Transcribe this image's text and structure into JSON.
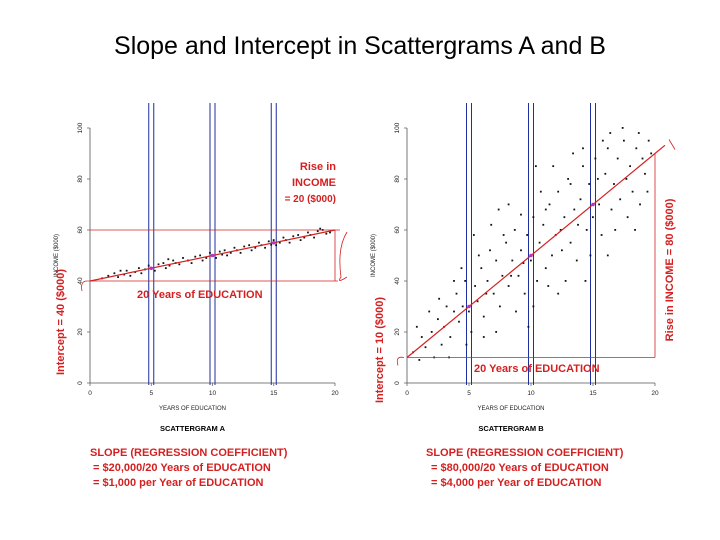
{
  "title": "Slope and Intercept in Scattergrams A and B",
  "colors": {
    "regression": "#d42020",
    "guide": "#1f2f9e",
    "points": "#111111",
    "text_red": "#d42020"
  },
  "chart_data": [
    {
      "type": "scatter",
      "name": "SCATTERGRAM A",
      "xlabel": "YEARS OF EDUCATION",
      "ylabel": "INCOME ($000)",
      "xlim": [
        0,
        20
      ],
      "ylim": [
        0,
        100
      ],
      "xticks": [
        0,
        5,
        10,
        15,
        20
      ],
      "yticks": [
        0,
        20,
        40,
        60,
        80,
        100
      ],
      "regression": {
        "intercept": 40,
        "slope": 1
      },
      "vertical_guides": [
        5,
        10,
        15
      ],
      "annotations": {
        "rise_lines": [
          "Rise in",
          "INCOME",
          "= 20 ($000)"
        ],
        "run": "20 Years of EDUCATION",
        "intercept": "Intercept = 40 ($000)",
        "slope_lines": [
          "SLOPE (REGRESSION COEFFICIENT)",
          "= $20,000/20 Years of EDUCATION",
          "= $1,000 per Year of EDUCATION"
        ]
      },
      "points": [
        [
          1,
          41
        ],
        [
          1.5,
          42
        ],
        [
          2,
          43
        ],
        [
          2.3,
          41.5
        ],
        [
          2.8,
          42.5
        ],
        [
          3,
          44
        ],
        [
          3.3,
          42
        ],
        [
          3.7,
          43.5
        ],
        [
          4,
          45
        ],
        [
          4.2,
          43
        ],
        [
          4.5,
          44.5
        ],
        [
          4.8,
          46
        ],
        [
          5,
          45
        ],
        [
          5.3,
          44
        ],
        [
          5.6,
          46.5
        ],
        [
          6,
          47
        ],
        [
          6.2,
          45
        ],
        [
          6.5,
          46
        ],
        [
          6.8,
          48
        ],
        [
          7,
          47
        ],
        [
          7.3,
          46.5
        ],
        [
          7.6,
          49
        ],
        [
          8,
          48
        ],
        [
          8.3,
          47
        ],
        [
          8.6,
          49.5
        ],
        [
          9,
          50
        ],
        [
          9.2,
          48
        ],
        [
          9.5,
          49
        ],
        [
          9.8,
          51
        ],
        [
          10,
          50
        ],
        [
          10.3,
          49
        ],
        [
          10.6,
          51.5
        ],
        [
          11,
          52
        ],
        [
          11.2,
          50
        ],
        [
          11.5,
          51
        ],
        [
          11.8,
          53
        ],
        [
          12,
          52
        ],
        [
          12.3,
          51
        ],
        [
          12.6,
          53.5
        ],
        [
          13,
          54
        ],
        [
          13.2,
          52
        ],
        [
          13.5,
          53
        ],
        [
          13.8,
          55
        ],
        [
          14,
          54
        ],
        [
          14.3,
          53
        ],
        [
          14.6,
          55.5
        ],
        [
          15,
          56
        ],
        [
          15.2,
          54
        ],
        [
          15.5,
          55
        ],
        [
          15.8,
          57
        ],
        [
          16,
          56
        ],
        [
          16.3,
          55
        ],
        [
          16.6,
          57.5
        ],
        [
          17,
          58
        ],
        [
          17.2,
          56
        ],
        [
          17.5,
          57
        ],
        [
          17.8,
          59
        ],
        [
          18,
          58
        ],
        [
          18.3,
          57
        ],
        [
          18.6,
          59.5
        ],
        [
          19,
          60
        ],
        [
          19.3,
          58.5
        ],
        [
          19.6,
          59
        ],
        [
          2.5,
          44
        ],
        [
          6.4,
          48.5
        ],
        [
          10.8,
          50.3
        ],
        [
          14.8,
          54.2
        ],
        [
          18.8,
          60.5
        ]
      ]
    },
    {
      "type": "scatter",
      "name": "SCATTERGRAM B",
      "xlabel": "YEARS OF EDUCATION",
      "ylabel": "INCOME ($000)",
      "xlim": [
        0,
        20
      ],
      "ylim": [
        0,
        100
      ],
      "xticks": [
        0,
        5,
        10,
        15,
        20
      ],
      "yticks": [
        0,
        20,
        40,
        60,
        80,
        100
      ],
      "regression": {
        "intercept": 10,
        "slope": 4
      },
      "vertical_guides": [
        5,
        10,
        15
      ],
      "annotations": {
        "rise": "Rise in INCOME = 80 ($000)",
        "run": "20 Years of EDUCATION",
        "intercept": "Intercept = 10 ($000)",
        "slope_lines": [
          "SLOPE (REGRESSION COEFFICIENT)",
          "= $80,000/20 Years of EDUCATION",
          "= $4,000 per Year of EDUCATION"
        ]
      },
      "points": [
        [
          0.5,
          12
        ],
        [
          1,
          9
        ],
        [
          1.2,
          18
        ],
        [
          1.5,
          14
        ],
        [
          2,
          20
        ],
        [
          2.2,
          10
        ],
        [
          2.5,
          25
        ],
        [
          2.8,
          15
        ],
        [
          3,
          22
        ],
        [
          3.2,
          30
        ],
        [
          3.5,
          18
        ],
        [
          3.8,
          28
        ],
        [
          4,
          35
        ],
        [
          4.2,
          24
        ],
        [
          4.5,
          30
        ],
        [
          4.7,
          40
        ],
        [
          5,
          28
        ],
        [
          5.2,
          20
        ],
        [
          5.5,
          38
        ],
        [
          5.7,
          32
        ],
        [
          6,
          45
        ],
        [
          6.2,
          26
        ],
        [
          6.5,
          40
        ],
        [
          6.7,
          52
        ],
        [
          7,
          35
        ],
        [
          7.2,
          48
        ],
        [
          7.5,
          30
        ],
        [
          7.7,
          42
        ],
        [
          8,
          55
        ],
        [
          8.2,
          38
        ],
        [
          8.5,
          48
        ],
        [
          8.7,
          60
        ],
        [
          9,
          42
        ],
        [
          9.2,
          52
        ],
        [
          9.5,
          35
        ],
        [
          9.7,
          58
        ],
        [
          10,
          48
        ],
        [
          10.2,
          65
        ],
        [
          10.5,
          40
        ],
        [
          10.7,
          55
        ],
        [
          11,
          62
        ],
        [
          11.2,
          45
        ],
        [
          11.5,
          70
        ],
        [
          11.7,
          50
        ],
        [
          12,
          58
        ],
        [
          12.2,
          75
        ],
        [
          12.5,
          52
        ],
        [
          12.7,
          65
        ],
        [
          13,
          80
        ],
        [
          13.2,
          55
        ],
        [
          13.5,
          68
        ],
        [
          13.7,
          48
        ],
        [
          14,
          72
        ],
        [
          14.2,
          85
        ],
        [
          14.5,
          60
        ],
        [
          14.7,
          78
        ],
        [
          15,
          65
        ],
        [
          15.2,
          88
        ],
        [
          15.5,
          70
        ],
        [
          15.7,
          58
        ],
        [
          16,
          82
        ],
        [
          16.2,
          92
        ],
        [
          16.5,
          68
        ],
        [
          16.7,
          78
        ],
        [
          17,
          88
        ],
        [
          17.2,
          72
        ],
        [
          17.5,
          95
        ],
        [
          17.7,
          80
        ],
        [
          18,
          85
        ],
        [
          18.2,
          75
        ],
        [
          18.5,
          92
        ],
        [
          18.7,
          98
        ],
        [
          19,
          88
        ],
        [
          19.2,
          82
        ],
        [
          19.5,
          95
        ],
        [
          19.7,
          90
        ],
        [
          6.8,
          62
        ],
        [
          8.8,
          28
        ],
        [
          10.8,
          75
        ],
        [
          12.8,
          40
        ],
        [
          14.8,
          50
        ],
        [
          16.8,
          60
        ],
        [
          11.8,
          85
        ],
        [
          9.8,
          22
        ],
        [
          7.8,
          58
        ],
        [
          13.8,
          62
        ],
        [
          5.8,
          50
        ],
        [
          4.8,
          15
        ],
        [
          3.8,
          40
        ],
        [
          15.8,
          95
        ],
        [
          17.8,
          65
        ],
        [
          18.8,
          70
        ],
        [
          12.2,
          35
        ],
        [
          10.2,
          30
        ],
        [
          8.2,
          70
        ],
        [
          6.2,
          18
        ],
        [
          14.2,
          92
        ],
        [
          16.2,
          50
        ],
        [
          11.2,
          68
        ],
        [
          13.2,
          78
        ],
        [
          9.2,
          66
        ],
        [
          7.2,
          20
        ],
        [
          3.4,
          10
        ],
        [
          2.6,
          33
        ],
        [
          19.4,
          75
        ],
        [
          18.4,
          60
        ],
        [
          17.4,
          100
        ],
        [
          16.4,
          98
        ],
        [
          15.4,
          80
        ],
        [
          14.4,
          40
        ],
        [
          13.4,
          90
        ],
        [
          12.4,
          60
        ],
        [
          11.4,
          38
        ],
        [
          10.4,
          85
        ],
        [
          9.4,
          47
        ],
        [
          8.4,
          42
        ],
        [
          7.4,
          68
        ],
        [
          6.4,
          35
        ],
        [
          5.4,
          58
        ],
        [
          4.4,
          45
        ],
        [
          1.8,
          28
        ],
        [
          0.8,
          22
        ]
      ]
    }
  ]
}
